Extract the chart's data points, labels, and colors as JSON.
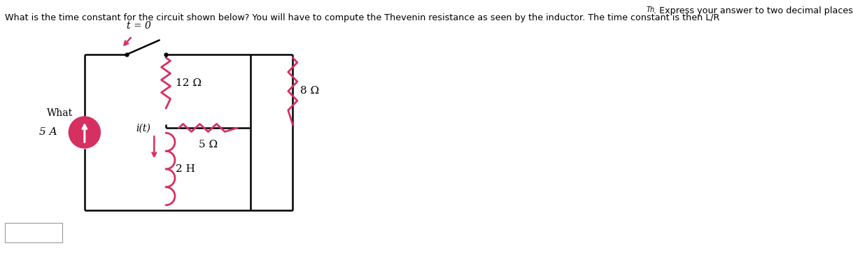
{
  "title_text": "What is the time constant for the circuit shown below? You will have to compute the Thevenin resistance as seen by the inductor. The time constant is then L/R",
  "title_suffix": "Th",
  "title_end": ". Express your answer to two decimal places.",
  "background_color": "#ffffff",
  "circuit_color": "#000000",
  "element_color": "#d63060",
  "switch_label": "t = 0",
  "source_label": "5 A",
  "what_label": "What",
  "r1_label": "12 Ω",
  "r2_label": "8 Ω",
  "r3_label": "5 Ω",
  "l_label": "2 H",
  "i_label": "i(t)",
  "fig_width": 12.19,
  "fig_height": 3.65,
  "dpi": 100,
  "xl": 130,
  "xm": 255,
  "xr": 385,
  "xfr": 450,
  "yt": 295,
  "yb": 55,
  "ym": 182
}
